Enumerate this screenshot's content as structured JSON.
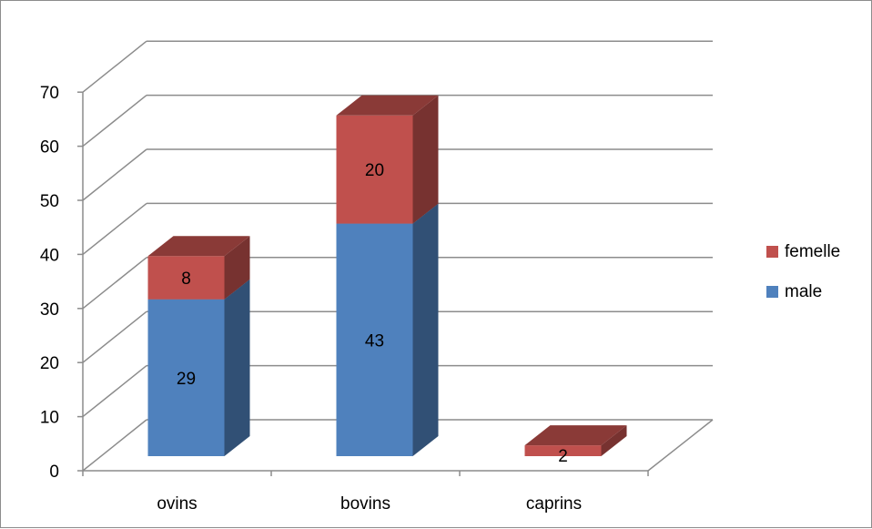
{
  "chart_data": {
    "type": "bar",
    "stacked": true,
    "three_d": true,
    "categories": [
      "ovins",
      "bovins",
      "caprins"
    ],
    "series": [
      {
        "name": "male",
        "values": [
          29,
          43,
          0
        ],
        "color": "#4f81bd",
        "data_labels": [
          "29",
          "43",
          ""
        ]
      },
      {
        "name": "femelle",
        "values": [
          8,
          20,
          2
        ],
        "color": "#c0504d",
        "data_labels": [
          "8",
          "20",
          "2"
        ]
      }
    ],
    "ylim": [
      0,
      70
    ],
    "yticks": [
      "0",
      "10",
      "20",
      "30",
      "40",
      "50",
      "60",
      "70"
    ],
    "grid": true,
    "legend_position": "right"
  }
}
